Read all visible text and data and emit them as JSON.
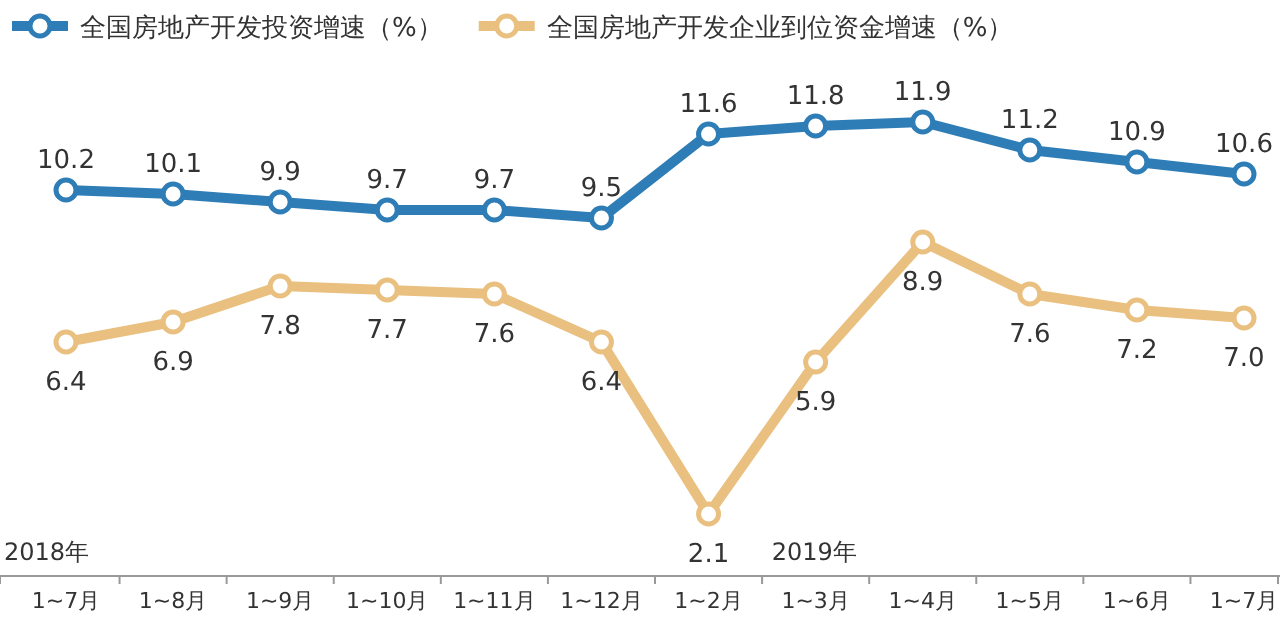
{
  "chart_data": {
    "type": "line",
    "categories": [
      "1~7月",
      "1~8月",
      "1~9月",
      "1~10月",
      "1~11月",
      "1~12月",
      "1~2月",
      "1~3月",
      "1~4月",
      "1~5月",
      "1~6月",
      "1~7月"
    ],
    "series": [
      {
        "name": "全国房地产开发投资增速（%）",
        "color": "#2e7db6",
        "values": [
          10.2,
          10.1,
          9.9,
          9.7,
          9.7,
          9.5,
          11.6,
          11.8,
          11.9,
          11.2,
          10.9,
          10.6
        ]
      },
      {
        "name": "全国房地产开发企业到位资金增速（%）",
        "color": "#e9c07f",
        "values": [
          6.4,
          6.9,
          7.8,
          7.7,
          7.6,
          6.4,
          2.1,
          5.9,
          8.9,
          7.6,
          7.2,
          7.0
        ],
        "value_labels": [
          "6.4",
          "6.9",
          "7.8",
          "7.7",
          "7.6",
          "6.4",
          "2.1",
          "5.9",
          "8.9",
          "7.6",
          "7.2",
          "7.0"
        ]
      }
    ],
    "annotations": [
      "2018年",
      "2019年"
    ],
    "data_labels": true,
    "legend": "top left",
    "marker": "circle"
  }
}
